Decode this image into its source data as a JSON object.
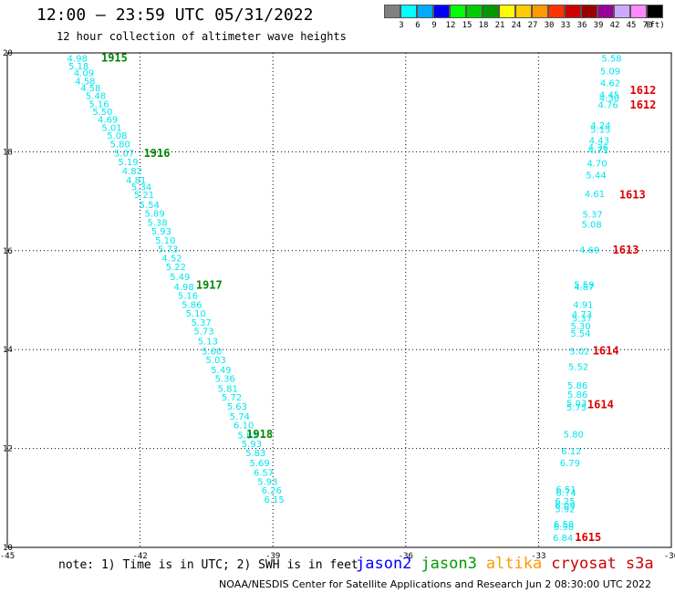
{
  "header": {
    "title": "12:00 – 23:59 UTC 05/31/2022",
    "subtitle": "12 hour collection of altimeter wave heights"
  },
  "color_scale": {
    "unit": "(ft)",
    "bins": [
      {
        "label": "3",
        "color": "#808080"
      },
      {
        "label": "6",
        "color": "#00ffff"
      },
      {
        "label": "9",
        "color": "#00aaff"
      },
      {
        "label": "12",
        "color": "#0000ff"
      },
      {
        "label": "15",
        "color": "#00ff00"
      },
      {
        "label": "18",
        "color": "#00cc00"
      },
      {
        "label": "21",
        "color": "#009900"
      },
      {
        "label": "24",
        "color": "#ffff00"
      },
      {
        "label": "27",
        "color": "#ffcc00"
      },
      {
        "label": "30",
        "color": "#ff9900"
      },
      {
        "label": "33",
        "color": "#ff3300"
      },
      {
        "label": "36",
        "color": "#cc0000"
      },
      {
        "label": "39",
        "color": "#990000"
      },
      {
        "label": "42",
        "color": "#990099"
      },
      {
        "label": "45",
        "color": "#ccaaff"
      },
      {
        "label": "70",
        "color": "#ff88ff"
      },
      {
        "label": "",
        "color": "#000000"
      }
    ]
  },
  "footer": {
    "note": "note: 1) Time is in UTC; 2) SWH is in feet",
    "credit": "NOAA/NESDIS Center for Satellite Applications and Research   Jun  2 08:30:00 UTC 2022",
    "series": [
      {
        "name": "jason2",
        "color": "#0000ff"
      },
      {
        "name": "jason3",
        "color": "#009900"
      },
      {
        "name": "altika",
        "color": "#ff9900"
      },
      {
        "name": "cryosat",
        "color": "#cc0000"
      },
      {
        "name": "s3a",
        "color": "#cc0000"
      }
    ]
  },
  "chart_data": {
    "type": "scatter",
    "xlim": [
      -45,
      -30
    ],
    "ylim": [
      10,
      20
    ],
    "xticks": [
      -45,
      -42,
      -39,
      -36,
      -33,
      -30
    ],
    "xtick_labels": [
      "-45",
      "-42",
      "-39",
      "-36",
      "-33",
      "-30"
    ],
    "yticks": [
      10,
      12,
      14,
      16,
      18,
      20
    ],
    "ytick_labels": [
      "10",
      "12",
      "14",
      "16",
      "18",
      "20"
    ],
    "grid": true,
    "value_color": "#00e5ee",
    "time_colors": {
      "jason3": "#008800",
      "cryosat": "#dd0000"
    },
    "tracks": [
      {
        "name": "jason3",
        "points": [
          {
            "x": -43.42,
            "y": 19.9,
            "v": "4.98"
          },
          {
            "x": -43.39,
            "y": 19.74,
            "v": "5.18"
          },
          {
            "x": -43.27,
            "y": 19.6,
            "v": "4.09"
          },
          {
            "x": -43.24,
            "y": 19.44,
            "v": "4.58"
          },
          {
            "x": -43.12,
            "y": 19.3,
            "v": "4.58"
          },
          {
            "x": -43.0,
            "y": 19.14,
            "v": "5.48"
          },
          {
            "x": -42.93,
            "y": 18.98,
            "v": "5.16"
          },
          {
            "x": -42.85,
            "y": 18.82,
            "v": "5.50"
          },
          {
            "x": -42.73,
            "y": 18.66,
            "v": "4.69"
          },
          {
            "x": -42.64,
            "y": 18.5,
            "v": "5.01"
          },
          {
            "x": -42.52,
            "y": 18.34,
            "v": "5.08"
          },
          {
            "x": -42.45,
            "y": 18.16,
            "v": "5.80"
          },
          {
            "x": -42.36,
            "y": 17.98,
            "v": "5.07"
          },
          {
            "x": -42.27,
            "y": 17.8,
            "v": "5.19"
          },
          {
            "x": -42.18,
            "y": 17.62,
            "v": "4.82"
          },
          {
            "x": -42.09,
            "y": 17.44,
            "v": "4.81"
          },
          {
            "x": -41.97,
            "y": 17.3,
            "v": "5.34"
          },
          {
            "x": -41.91,
            "y": 17.14,
            "v": "5.21"
          },
          {
            "x": -41.79,
            "y": 16.94,
            "v": "5.54"
          },
          {
            "x": -41.67,
            "y": 16.76,
            "v": "5.89"
          },
          {
            "x": -41.61,
            "y": 16.58,
            "v": "5.38"
          },
          {
            "x": -41.52,
            "y": 16.4,
            "v": "5.93"
          },
          {
            "x": -41.43,
            "y": 16.22,
            "v": "5.10"
          },
          {
            "x": -41.37,
            "y": 16.04,
            "v": "5.73"
          },
          {
            "x": -41.28,
            "y": 15.86,
            "v": "4.52"
          },
          {
            "x": -41.19,
            "y": 15.68,
            "v": "5.22"
          },
          {
            "x": -41.1,
            "y": 15.48,
            "v": "5.49"
          },
          {
            "x": -41.01,
            "y": 15.28,
            "v": "4.98"
          },
          {
            "x": -40.92,
            "y": 15.1,
            "v": "5.16"
          },
          {
            "x": -40.83,
            "y": 14.92,
            "v": "5.86"
          },
          {
            "x": -40.74,
            "y": 14.74,
            "v": "5.10"
          },
          {
            "x": -40.62,
            "y": 14.56,
            "v": "5.37"
          },
          {
            "x": -40.56,
            "y": 14.38,
            "v": "5.73"
          },
          {
            "x": -40.47,
            "y": 14.18,
            "v": "5.13"
          },
          {
            "x": -40.38,
            "y": 13.98,
            "v": "5.60"
          },
          {
            "x": -40.29,
            "y": 13.8,
            "v": "5.03"
          },
          {
            "x": -40.17,
            "y": 13.6,
            "v": "5.49"
          },
          {
            "x": -40.08,
            "y": 13.42,
            "v": "5.36"
          },
          {
            "x": -40.02,
            "y": 13.22,
            "v": "5.81"
          },
          {
            "x": -39.93,
            "y": 13.04,
            "v": "5.72"
          },
          {
            "x": -39.81,
            "y": 12.86,
            "v": "5.63"
          },
          {
            "x": -39.75,
            "y": 12.66,
            "v": "5.74"
          },
          {
            "x": -39.66,
            "y": 12.48,
            "v": "6.10"
          },
          {
            "x": -39.57,
            "y": 12.28,
            "v": "5.83"
          },
          {
            "x": -39.48,
            "y": 12.1,
            "v": "5.93"
          },
          {
            "x": -39.39,
            "y": 11.92,
            "v": "5.83"
          },
          {
            "x": -39.3,
            "y": 11.72,
            "v": "5.69"
          },
          {
            "x": -39.21,
            "y": 11.52,
            "v": "6.57"
          },
          {
            "x": -39.12,
            "y": 11.34,
            "v": "5.93"
          },
          {
            "x": -39.03,
            "y": 11.16,
            "v": "6.26"
          },
          {
            "x": -38.97,
            "y": 10.98,
            "v": "6.15"
          }
        ],
        "times": [
          {
            "x": -42.58,
            "y": 19.92,
            "t": "1915"
          },
          {
            "x": -41.62,
            "y": 17.99,
            "t": "1916"
          },
          {
            "x": -40.44,
            "y": 15.32,
            "t": "1917"
          },
          {
            "x": -39.3,
            "y": 12.31,
            "t": "1918"
          }
        ]
      },
      {
        "name": "cryosat",
        "points": [
          {
            "x": -31.35,
            "y": 19.9,
            "v": "5.58"
          },
          {
            "x": -31.38,
            "y": 19.64,
            "v": "5.09"
          },
          {
            "x": -31.38,
            "y": 19.4,
            "v": "4.62"
          },
          {
            "x": -31.4,
            "y": 19.16,
            "v": "4.45"
          },
          {
            "x": -31.4,
            "y": 19.1,
            "v": "4.30"
          },
          {
            "x": -31.43,
            "y": 18.96,
            "v": "4.76"
          },
          {
            "x": -31.6,
            "y": 18.54,
            "v": "4.24"
          },
          {
            "x": -31.6,
            "y": 18.46,
            "v": "5.15"
          },
          {
            "x": -31.63,
            "y": 18.24,
            "v": "4.43"
          },
          {
            "x": -31.65,
            "y": 18.1,
            "v": "4.36"
          },
          {
            "x": -31.65,
            "y": 18.04,
            "v": "4.71"
          },
          {
            "x": -31.68,
            "y": 17.78,
            "v": "4.70"
          },
          {
            "x": -31.7,
            "y": 17.54,
            "v": "5.44"
          },
          {
            "x": -31.73,
            "y": 17.16,
            "v": "4.61"
          },
          {
            "x": -31.78,
            "y": 16.74,
            "v": "5.37"
          },
          {
            "x": -31.8,
            "y": 16.54,
            "v": "5.08"
          },
          {
            "x": -31.85,
            "y": 16.02,
            "v": "4.69"
          },
          {
            "x": -31.97,
            "y": 15.32,
            "v": "5.59"
          },
          {
            "x": -31.97,
            "y": 15.28,
            "v": "4.87"
          },
          {
            "x": -31.99,
            "y": 14.92,
            "v": "4.91"
          },
          {
            "x": -32.02,
            "y": 14.72,
            "v": "4.73"
          },
          {
            "x": -32.02,
            "y": 14.64,
            "v": "5.37"
          },
          {
            "x": -32.05,
            "y": 14.48,
            "v": "5.30"
          },
          {
            "x": -32.05,
            "y": 14.34,
            "v": "5.54"
          },
          {
            "x": -32.07,
            "y": 13.98,
            "v": "5.02"
          },
          {
            "x": -32.1,
            "y": 13.66,
            "v": "5.52"
          },
          {
            "x": -32.12,
            "y": 13.28,
            "v": "5.86"
          },
          {
            "x": -32.12,
            "y": 13.1,
            "v": "5.86"
          },
          {
            "x": -32.14,
            "y": 12.92,
            "v": "5.03"
          },
          {
            "x": -32.14,
            "y": 12.84,
            "v": "5.75"
          },
          {
            "x": -32.21,
            "y": 12.3,
            "v": "5.80"
          },
          {
            "x": -32.26,
            "y": 11.96,
            "v": "6.12"
          },
          {
            "x": -32.29,
            "y": 11.72,
            "v": "6.79"
          },
          {
            "x": -32.38,
            "y": 11.18,
            "v": "6.51"
          },
          {
            "x": -32.38,
            "y": 11.12,
            "v": "6.74"
          },
          {
            "x": -32.4,
            "y": 10.94,
            "v": "6.25"
          },
          {
            "x": -32.4,
            "y": 10.86,
            "v": "6.09"
          },
          {
            "x": -32.4,
            "y": 10.78,
            "v": "5.92"
          },
          {
            "x": -32.43,
            "y": 10.48,
            "v": "6.58"
          },
          {
            "x": -32.43,
            "y": 10.42,
            "v": "6.98"
          },
          {
            "x": -32.45,
            "y": 10.2,
            "v": "6.84"
          }
        ],
        "times": [
          {
            "x": -30.64,
            "y": 19.26,
            "t": "1612"
          },
          {
            "x": -30.64,
            "y": 18.97,
            "t": "1612"
          },
          {
            "x": -30.88,
            "y": 17.15,
            "t": "1613"
          },
          {
            "x": -31.03,
            "y": 16.03,
            "t": "1613"
          },
          {
            "x": -31.48,
            "y": 13.99,
            "t": "1614"
          },
          {
            "x": -31.6,
            "y": 12.91,
            "t": "1614"
          },
          {
            "x": -31.88,
            "y": 10.22,
            "t": "1615"
          }
        ]
      }
    ]
  }
}
